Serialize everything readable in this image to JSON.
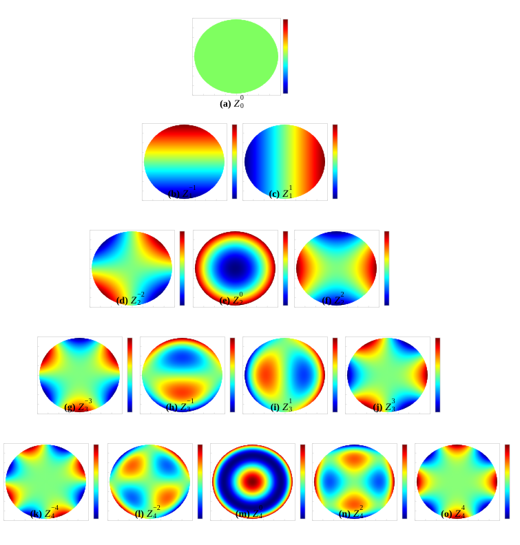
{
  "figure": {
    "panels": [
      {
        "label": "(a)",
        "symbol": "Z",
        "sub": "0",
        "sup": "0",
        "n": 0,
        "m": 0
      },
      {
        "label": "(b)",
        "symbol": "Z",
        "sub": "1",
        "sup": "−1",
        "n": 1,
        "m": -1
      },
      {
        "label": "(c)",
        "symbol": "Z",
        "sub": "1",
        "sup": "1",
        "n": 1,
        "m": 1
      },
      {
        "label": "(d)",
        "symbol": "Z",
        "sub": "2",
        "sup": "−2",
        "n": 2,
        "m": -2
      },
      {
        "label": "(e)",
        "symbol": "Z",
        "sub": "2",
        "sup": "0",
        "n": 2,
        "m": 0
      },
      {
        "label": "(f)",
        "symbol": "Z",
        "sub": "2",
        "sup": "2",
        "n": 2,
        "m": 2
      },
      {
        "label": "(g)",
        "symbol": "Z",
        "sub": "3",
        "sup": "−3",
        "n": 3,
        "m": -3
      },
      {
        "label": "(h)",
        "symbol": "Z",
        "sub": "3",
        "sup": "−1",
        "n": 3,
        "m": -1
      },
      {
        "label": "(i)",
        "symbol": "Z",
        "sub": "3",
        "sup": "1",
        "n": 3,
        "m": 1
      },
      {
        "label": "(j)",
        "symbol": "Z",
        "sub": "3",
        "sup": "3",
        "n": 3,
        "m": 3
      },
      {
        "label": "(k)",
        "symbol": "Z",
        "sub": "4",
        "sup": "−4",
        "n": 4,
        "m": -4
      },
      {
        "label": "(l)",
        "symbol": "Z",
        "sub": "4",
        "sup": "−2",
        "n": 4,
        "m": -2
      },
      {
        "label": "(m)",
        "symbol": "Z",
        "sub": "4",
        "sup": "0",
        "n": 4,
        "m": 0
      },
      {
        "label": "(n)",
        "symbol": "Z",
        "sub": "4",
        "sup": "2",
        "n": 4,
        "m": 2
      },
      {
        "label": "(o)",
        "symbol": "Z",
        "sub": "4",
        "sup": "4",
        "n": 4,
        "m": 4
      }
    ],
    "colormap": "jet",
    "flat_color": "#7fff60"
  }
}
